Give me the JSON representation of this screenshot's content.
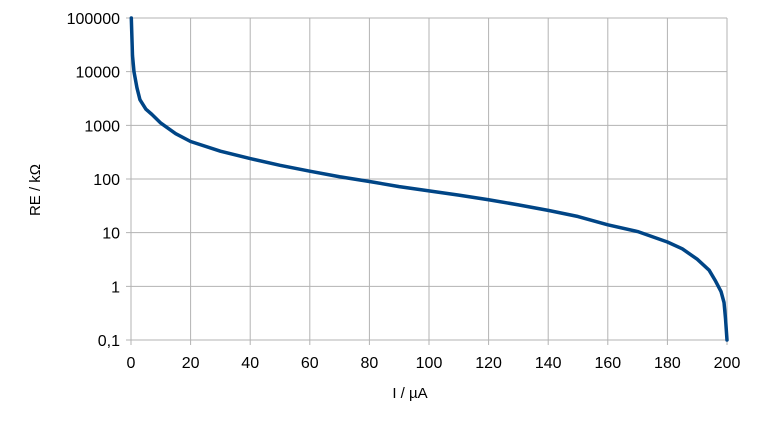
{
  "chart_data": {
    "type": "line",
    "xlabel": "I / µA",
    "ylabel": "RE / kΩ",
    "xlim": [
      0,
      200
    ],
    "ylim": [
      0.1,
      100000
    ],
    "y_scale": "log",
    "grid": true,
    "series_color": "#004586",
    "x_ticks": [
      "0",
      "20",
      "40",
      "60",
      "80",
      "100",
      "120",
      "140",
      "160",
      "180",
      "200"
    ],
    "y_ticks": [
      "0,1",
      "1",
      "10",
      "100",
      "1000",
      "10000",
      "100000"
    ],
    "series": [
      {
        "x": [
          0.1,
          0.5,
          1,
          2,
          3,
          5,
          7,
          10,
          15,
          20,
          30,
          40,
          50,
          60,
          70,
          80,
          90,
          100,
          110,
          120,
          130,
          140,
          150,
          160,
          170,
          180,
          185,
          190,
          194,
          196,
          198,
          199,
          199.5,
          200
        ],
        "y": [
          100000,
          20000,
          10000,
          5000,
          3000,
          2000,
          1600,
          1100,
          700,
          500,
          330,
          240,
          180,
          140,
          110,
          90,
          72,
          60,
          50,
          41,
          33,
          26,
          20,
          14,
          10.5,
          6.7,
          5,
          3.2,
          2,
          1.3,
          0.8,
          0.5,
          0.25,
          0.1
        ]
      }
    ]
  }
}
